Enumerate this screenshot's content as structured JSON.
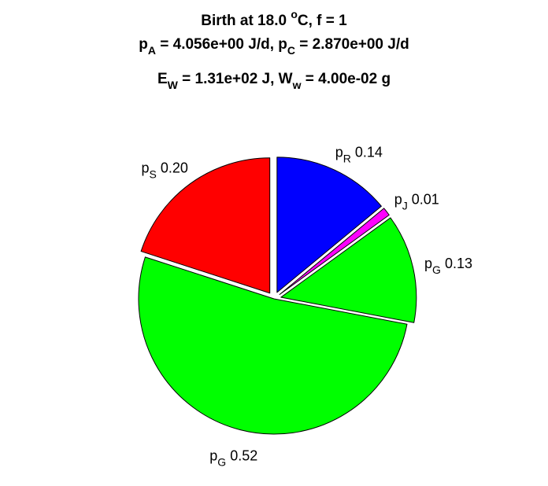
{
  "chart_data": {
    "type": "pie",
    "title_lines": [
      {
        "parts": [
          {
            "t": "Birth at 18.0 "
          },
          {
            "t": "o",
            "sup": true
          },
          {
            "t": "C, f = 1"
          }
        ]
      },
      {
        "parts": [
          {
            "t": "p"
          },
          {
            "t": "A",
            "sub": true
          },
          {
            "t": " = 4.056e+00 J/d, p"
          },
          {
            "t": "C",
            "sub": true
          },
          {
            "t": " = 2.870e+00 J/d"
          }
        ]
      },
      {
        "parts": [
          {
            "t": "E"
          },
          {
            "t": "W",
            "sub": true
          },
          {
            "t": " = 1.31e+02 J, W"
          },
          {
            "t": "w",
            "sub": true
          },
          {
            "t": " = 4.00e-02 g"
          }
        ]
      }
    ],
    "slices": [
      {
        "symbol": "p",
        "subscript": "R",
        "value": 0.14,
        "label_value": "0.14",
        "color": "#0000ff",
        "exploded": true
      },
      {
        "symbol": "p",
        "subscript": "J",
        "value": 0.01,
        "label_value": "0.01",
        "color": "#ff00ff",
        "exploded": true
      },
      {
        "symbol": "p",
        "subscript": "G",
        "value": 0.13,
        "label_value": "0.13",
        "color": "#00ff00",
        "exploded": true
      },
      {
        "symbol": "p",
        "subscript": "G",
        "value": 0.52,
        "label_value": "0.52",
        "color": "#00ff00",
        "exploded": false
      },
      {
        "symbol": "p",
        "subscript": "S",
        "value": 0.2,
        "label_value": "0.20",
        "color": "#ff0000",
        "exploded": true
      }
    ]
  }
}
